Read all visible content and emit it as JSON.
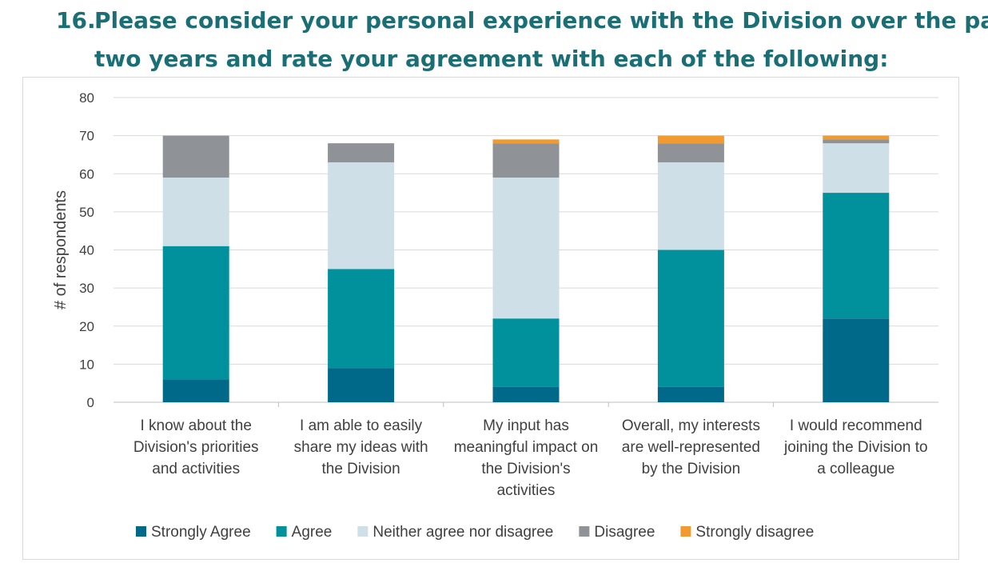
{
  "title": {
    "number": "16.",
    "line1": "Please consider your personal experience with the Division over the past",
    "line2": "two years and rate your agreement with each of the following:"
  },
  "chart_data": {
    "type": "bar",
    "stacked": true,
    "ylabel": "# of respondents",
    "xlabel": "",
    "ylim": [
      0,
      80
    ],
    "yticks": [
      0,
      10,
      20,
      30,
      40,
      50,
      60,
      70,
      80
    ],
    "grid": true,
    "legend_position": "bottom",
    "categories": [
      [
        "I know about the",
        "Division's priorities",
        "and activities"
      ],
      [
        "I am able to easily",
        "share my ideas with",
        "the Division"
      ],
      [
        "My input has",
        "meaningful impact on",
        "the Division's",
        "activities"
      ],
      [
        "Overall, my interests",
        "are well-represented",
        "by the Division"
      ],
      [
        "I would recommend",
        "joining the Division to",
        "a colleague"
      ]
    ],
    "series": [
      {
        "name": "Strongly Agree",
        "color": "#00698a",
        "values": [
          6,
          9,
          4,
          4,
          22
        ]
      },
      {
        "name": "Agree",
        "color": "#00919d",
        "values": [
          35,
          26,
          18,
          36,
          33
        ]
      },
      {
        "name": "Neither agree nor disagree",
        "color": "#cfdfe8",
        "values": [
          18,
          28,
          37,
          23,
          13
        ]
      },
      {
        "name": "Disagree",
        "color": "#8f9296",
        "values": [
          11,
          5,
          9,
          5,
          1
        ]
      },
      {
        "name": "Strongly disagree",
        "color": "#f19a2f",
        "values": [
          0,
          0,
          1,
          2,
          1
        ]
      }
    ]
  }
}
